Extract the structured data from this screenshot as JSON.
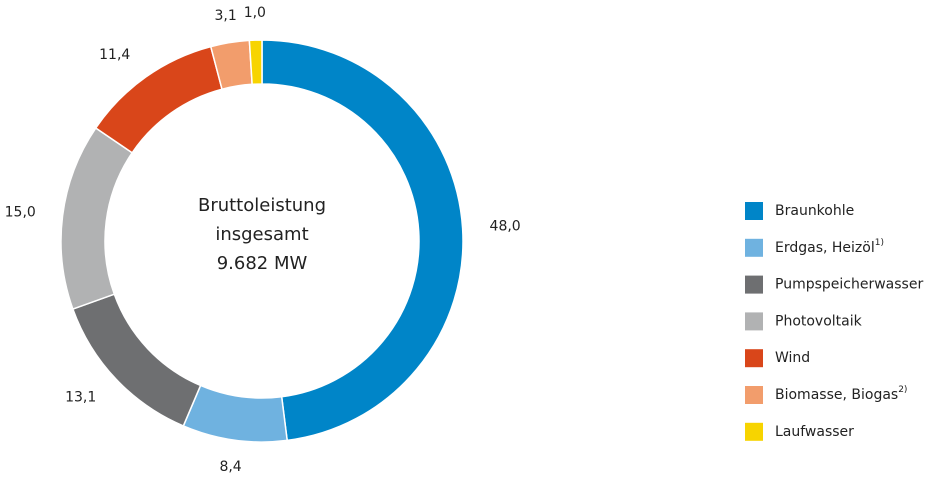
{
  "chart_data": {
    "type": "pie",
    "categories": [
      "Braunkohle",
      "Erdgas, Heizöl",
      "Pumpspeicherwasser",
      "Photovoltaik",
      "Wind",
      "Biomasse, Biogas",
      "Laufwasser"
    ],
    "category_notes": [
      null,
      "1)",
      null,
      null,
      null,
      "2)",
      null
    ],
    "values": [
      48.0,
      8.4,
      13.1,
      15.0,
      11.4,
      3.1,
      1.0
    ],
    "value_labels": [
      "48,0",
      "8,4",
      "13,1",
      "15,0",
      "11,4",
      "3,1",
      "1,0"
    ],
    "colors": [
      "#0085c8",
      "#6fb2e0",
      "#6e6f71",
      "#b1b2b3",
      "#d9461a",
      "#f29d6c",
      "#f7d400"
    ],
    "center_text": [
      "Bruttoleistung",
      "insgesamt",
      "9.682 MW"
    ]
  }
}
